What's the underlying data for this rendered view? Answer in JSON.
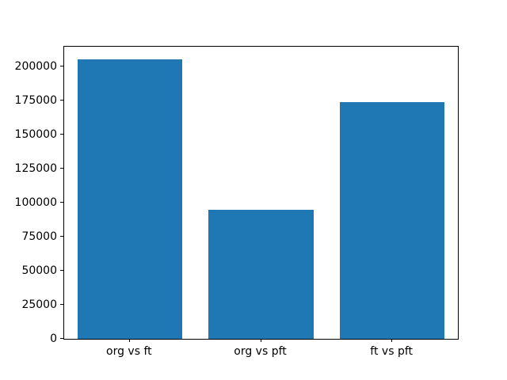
{
  "chart_data": {
    "type": "bar",
    "categories": [
      "org vs ft",
      "org vs pft",
      "ft vs pft"
    ],
    "values": [
      205000,
      95000,
      174000
    ],
    "title": "",
    "xlabel": "",
    "ylabel": "",
    "ylim": [
      0,
      214500
    ],
    "xlim": [
      -0.5,
      2.5
    ],
    "yticks": [
      0,
      25000,
      50000,
      75000,
      100000,
      125000,
      150000,
      175000,
      200000
    ],
    "bar_color": "#1f77b4",
    "bar_width_fraction": 0.8,
    "grid": false,
    "legend": null,
    "background_color": "#ffffff",
    "axis_color": "#000000"
  }
}
